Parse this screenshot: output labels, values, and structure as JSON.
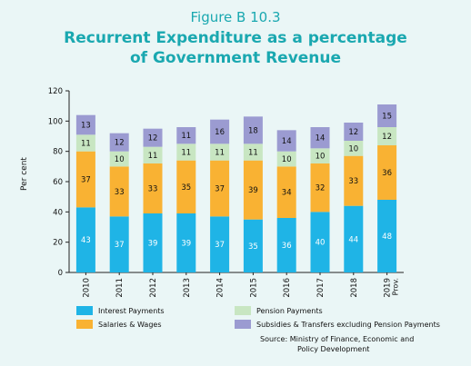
{
  "figure_label": "Figure B 10.3",
  "title_line1": "Recurrent Expenditure as a percentage",
  "title_line2": "of Government Revenue",
  "source_line1": "Source: Ministry of Finance, Economic and",
  "source_line2": "Policy Development",
  "colors": {
    "interest": "#1fb4e6",
    "salaries": "#f9b233",
    "pension": "#c8e6c2",
    "subsidies": "#9b9bd1"
  },
  "chart_data": {
    "type": "bar",
    "stacked": true,
    "ylabel": "Per cent",
    "ylim": [
      0,
      120
    ],
    "yticks": [
      0,
      20,
      40,
      60,
      80,
      100,
      120
    ],
    "categories": [
      "2010",
      "2011",
      "2012",
      "2013",
      "2014",
      "2015",
      "2016",
      "2017",
      "2018",
      "2019"
    ],
    "category_sublabels": [
      "",
      "",
      "",
      "",
      "",
      "",
      "",
      "",
      "",
      "Prov."
    ],
    "series": [
      {
        "name": "Interest Payments",
        "values": [
          43,
          37,
          39,
          39,
          37,
          35,
          36,
          40,
          44,
          48
        ]
      },
      {
        "name": "Salaries & Wages",
        "values": [
          37,
          33,
          33,
          35,
          37,
          39,
          34,
          32,
          33,
          36
        ]
      },
      {
        "name": "Pension Payments",
        "values": [
          11,
          10,
          11,
          11,
          11,
          11,
          10,
          10,
          10,
          12
        ]
      },
      {
        "name": "Subsidies & Transfers excluding Pension Payments",
        "values": [
          13,
          12,
          12,
          11,
          16,
          18,
          14,
          14,
          12,
          15
        ]
      }
    ],
    "legend_position": "bottom"
  }
}
